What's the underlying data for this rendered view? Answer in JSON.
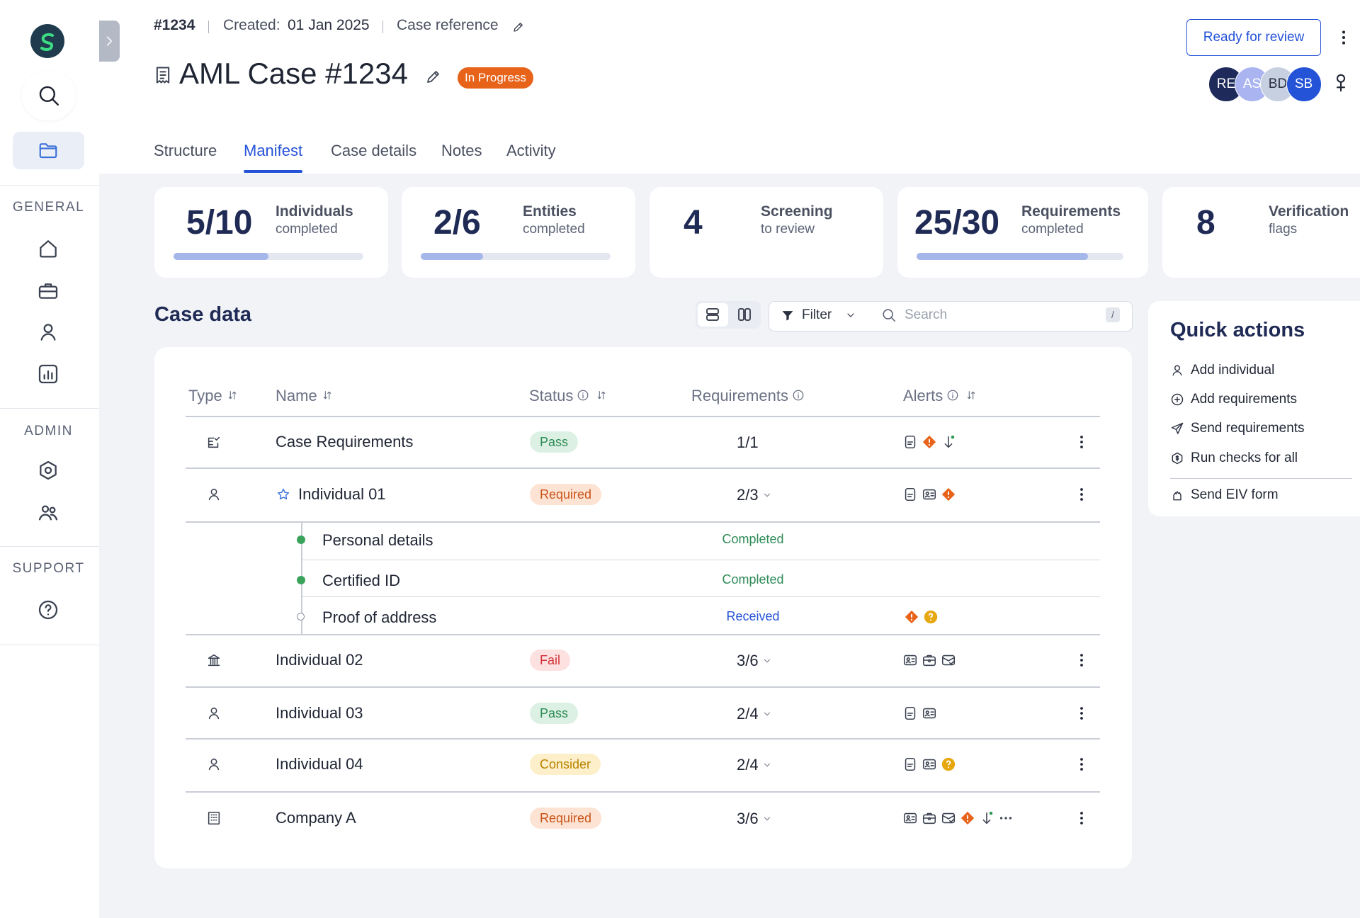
{
  "header": {
    "case_id": "#1234",
    "created_label": "Created:",
    "created_date": "01 Jan 2025",
    "case_reference": "Case reference",
    "title": "AML Case #1234",
    "status": "In Progress",
    "review_button": "Ready for review",
    "avatars": [
      "RE",
      "AS",
      "BD",
      "SB"
    ]
  },
  "sidebar": {
    "sections": [
      "GENERAL",
      "ADMIN",
      "SUPPORT"
    ]
  },
  "tabs": {
    "items": [
      "Structure",
      "Manifest",
      "Case details",
      "Notes",
      "Activity"
    ],
    "active": 1
  },
  "stats": [
    {
      "value": "5/10",
      "label": "Individuals",
      "sub": "completed",
      "progress": 50
    },
    {
      "value": "2/6",
      "label": "Entities",
      "sub": "completed",
      "progress": 33
    },
    {
      "value": "4",
      "label": "Screening",
      "sub": "to review"
    },
    {
      "value": "25/30",
      "label": "Requirements",
      "sub": "completed",
      "progress": 83
    },
    {
      "value": "8",
      "label": "Verification",
      "sub": "flags"
    }
  ],
  "case_data": {
    "title": "Case data",
    "filter": "Filter",
    "search_placeholder": "Search",
    "search_key": "/"
  },
  "table": {
    "columns": [
      "Type",
      "Name",
      "Status",
      "Requirements",
      "Alerts"
    ],
    "rows": [
      {
        "name": "Case Requirements",
        "status": "Pass",
        "requirements": "1/1"
      },
      {
        "name": "Individual 01",
        "status": "Required",
        "requirements": "2/3",
        "subrows": [
          {
            "name": "Personal details",
            "status": "Completed"
          },
          {
            "name": "Certified ID",
            "status": "Completed"
          },
          {
            "name": "Proof of address",
            "status": "Received"
          }
        ]
      },
      {
        "name": "Individual 02",
        "status": "Fail",
        "requirements": "3/6"
      },
      {
        "name": "Individual 03",
        "status": "Pass",
        "requirements": "2/4"
      },
      {
        "name": "Individual 04",
        "status": "Consider",
        "requirements": "2/4"
      },
      {
        "name": "Company A",
        "status": "Required",
        "requirements": "3/6"
      }
    ]
  },
  "quick_actions": {
    "title": "Quick actions",
    "items": [
      "Add individual",
      "Add requirements",
      "Send requirements",
      "Run checks for all",
      "Send EIV form"
    ]
  }
}
